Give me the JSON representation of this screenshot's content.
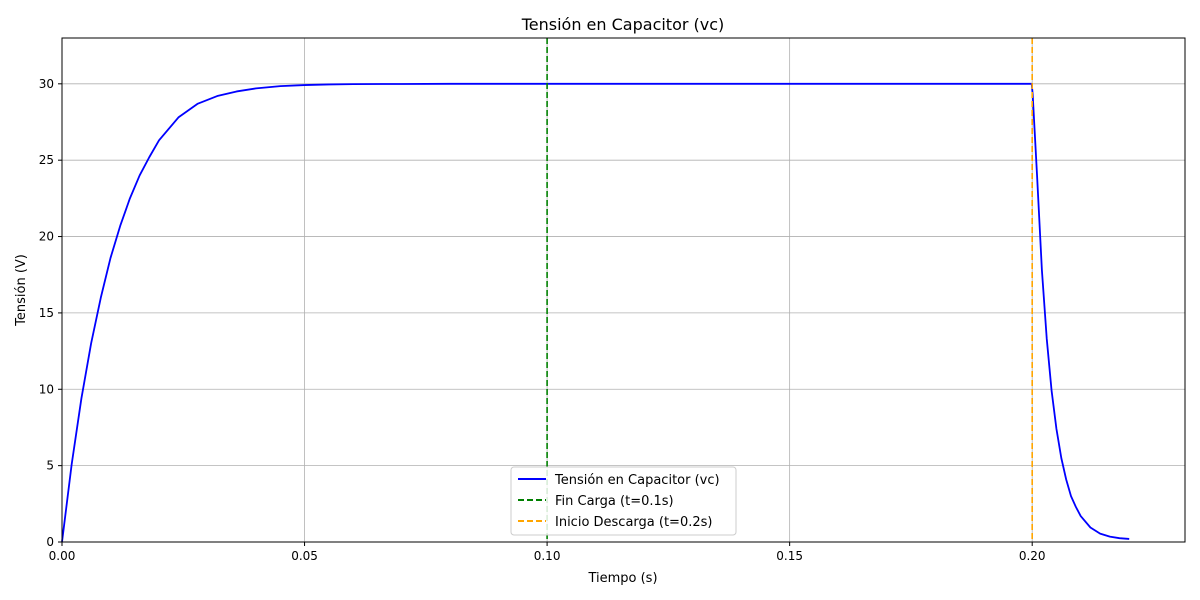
{
  "chart_data": {
    "type": "line",
    "title": "Tensión en Capacitor (vc)",
    "xlabel": "Tiempo (s)",
    "ylabel": "Tensión (V)",
    "xlim": [
      0,
      0.2315
    ],
    "ylim": [
      0,
      33
    ],
    "xticks": [
      0.0,
      0.05,
      0.1,
      0.15,
      0.2
    ],
    "xtick_labels": [
      "0.00",
      "0.05",
      "0.10",
      "0.15",
      "0.20"
    ],
    "yticks": [
      0,
      5,
      10,
      15,
      20,
      25,
      30
    ],
    "ytick_labels": [
      "0",
      "5",
      "10",
      "15",
      "20",
      "25",
      "30"
    ],
    "grid": true,
    "legend_position": "bottom-center",
    "series": [
      {
        "name": "Tensión en Capacitor (vc)",
        "color": "#0000ff",
        "style": "solid",
        "x": [
          0.0,
          0.002,
          0.004,
          0.006,
          0.008,
          0.01,
          0.012,
          0.014,
          0.016,
          0.018,
          0.02,
          0.024,
          0.028,
          0.032,
          0.036,
          0.04,
          0.045,
          0.05,
          0.055,
          0.06,
          0.07,
          0.08,
          0.1,
          0.12,
          0.14,
          0.16,
          0.18,
          0.1999,
          0.2001,
          0.201,
          0.202,
          0.203,
          0.204,
          0.205,
          0.206,
          0.207,
          0.208,
          0.209,
          0.21,
          0.212,
          0.214,
          0.216,
          0.218,
          0.22
        ],
        "y": [
          0.0,
          5.1,
          9.4,
          13.0,
          16.0,
          18.6,
          20.7,
          22.5,
          24.0,
          25.2,
          26.3,
          27.8,
          28.7,
          29.2,
          29.5,
          29.7,
          29.85,
          29.92,
          29.96,
          29.98,
          29.99,
          30.0,
          30.0,
          30.0,
          30.0,
          30.0,
          30.0,
          30.0,
          29.3,
          24.0,
          17.8,
          13.3,
          9.9,
          7.4,
          5.5,
          4.1,
          3.0,
          2.3,
          1.7,
          0.95,
          0.55,
          0.35,
          0.25,
          0.2
        ]
      },
      {
        "name": "Fin Carga (t=0.1s)",
        "color": "#008000",
        "style": "dashed",
        "vline": 0.1
      },
      {
        "name": "Inicio Descarga (t=0.2s)",
        "color": "#ffa500",
        "style": "dashed",
        "vline": 0.2
      }
    ]
  }
}
